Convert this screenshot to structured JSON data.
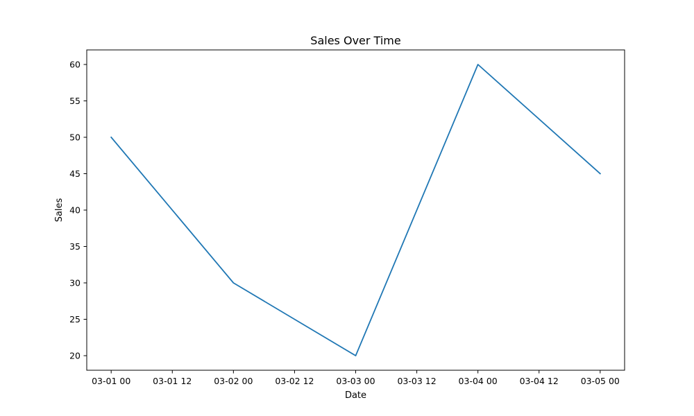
{
  "chart_data": {
    "type": "line",
    "title": "Sales Over Time",
    "xlabel": "Date",
    "ylabel": "Sales",
    "x": [
      "03-01 00",
      "03-02 00",
      "03-03 00",
      "03-04 00",
      "03-05 00"
    ],
    "series": [
      {
        "values": [
          50,
          30,
          20,
          60,
          45
        ]
      }
    ],
    "x_tick_labels": [
      "03-01 00",
      "03-01 12",
      "03-02 00",
      "03-02 12",
      "03-03 00",
      "03-03 12",
      "03-04 00",
      "03-04 12",
      "03-05 00"
    ],
    "y_ticks": [
      20,
      25,
      30,
      35,
      40,
      45,
      50,
      55,
      60
    ],
    "ylim": [
      18,
      62
    ],
    "grid": false,
    "legend": "none",
    "colors": {
      "line": "#1f77b4"
    }
  }
}
